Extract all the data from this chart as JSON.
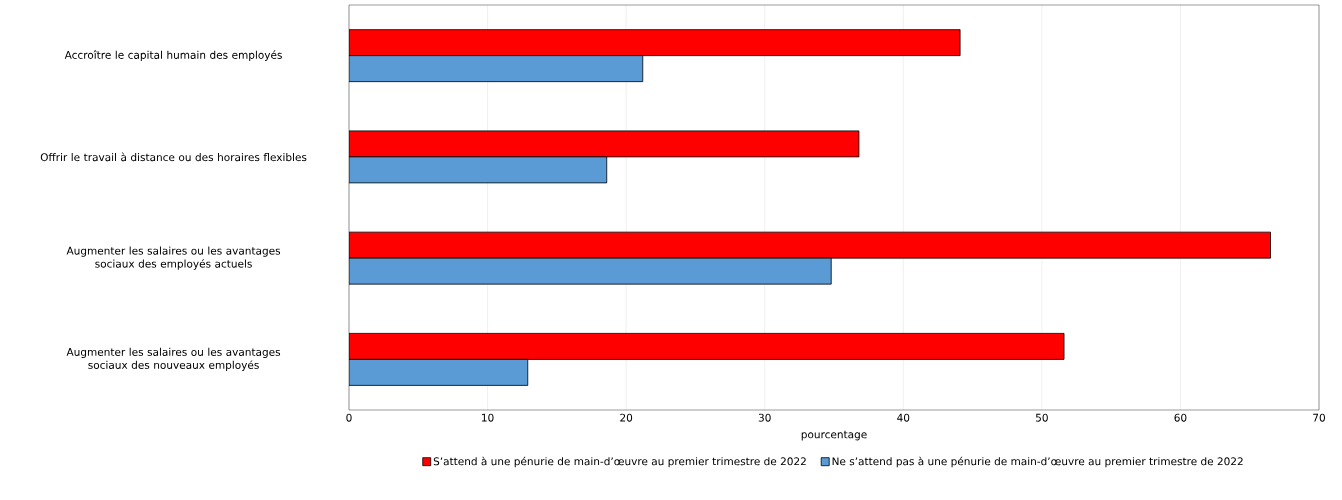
{
  "chart_data": {
    "type": "bar",
    "orientation": "horizontal",
    "xlabel": "pourcentage",
    "categories": [
      "Accroître le capital humain des employés",
      "Offrir le travail à distance ou des horaires flexibles",
      "Augmenter les salaires ou les avantages sociaux des employés actuels",
      "Augmenter les salaires ou les avantages sociaux des nouveaux employés"
    ],
    "series": [
      {
        "name": "S’attend à une pénurie de main-d’œuvre au premier trimestre de 2022",
        "color": "#ff0000",
        "values": [
          44.1,
          36.8,
          66.5,
          51.6
        ]
      },
      {
        "name": "Ne s’attend pas à une pénurie de main-d’œuvre au premier trimestre de 2022",
        "color": "#5b9bd5",
        "values": [
          21.2,
          18.6,
          34.8,
          12.9
        ]
      }
    ],
    "xlim": [
      0,
      70
    ],
    "xticks": [
      0,
      10,
      20,
      30,
      40,
      50,
      60,
      70
    ],
    "grid": "x",
    "legend": "bottom"
  }
}
